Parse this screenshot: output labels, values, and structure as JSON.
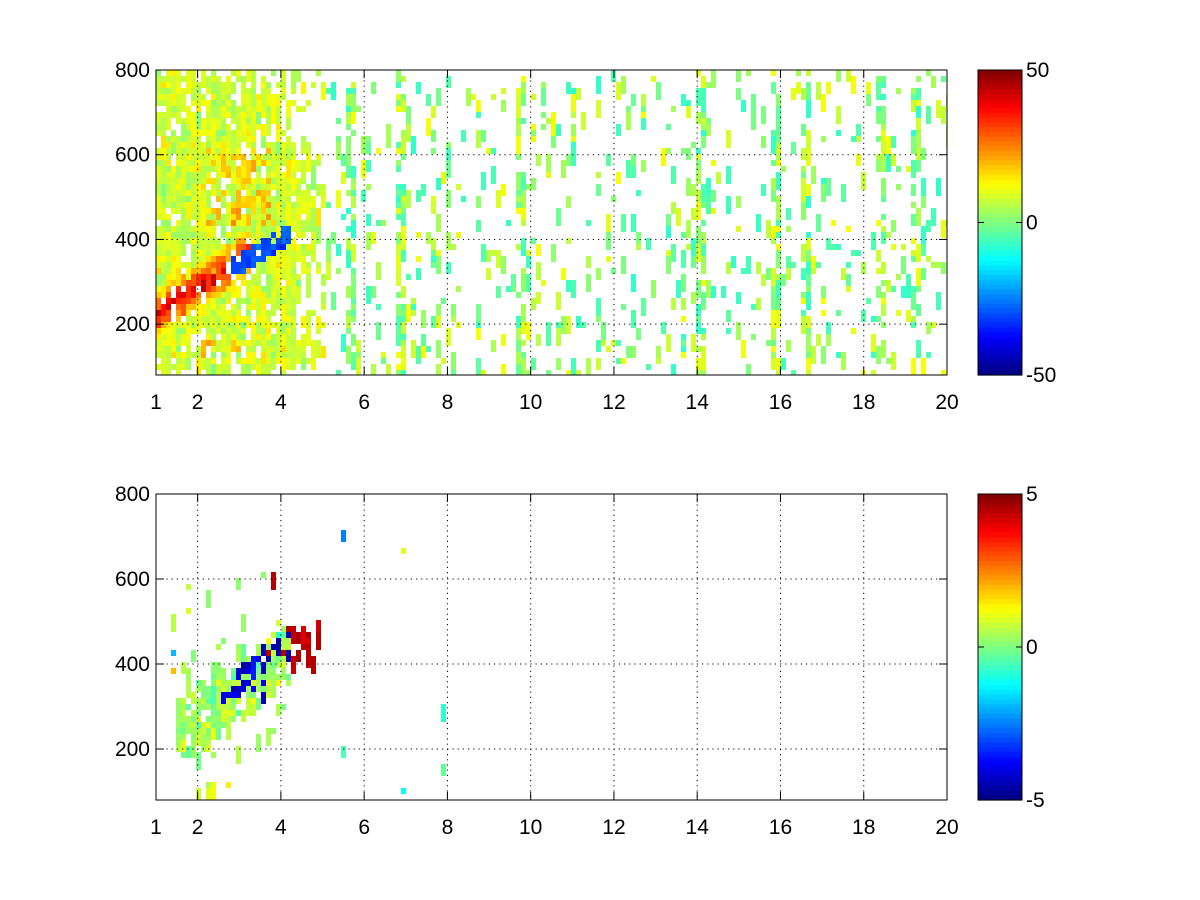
{
  "chart_data": [
    {
      "type": "heatmap",
      "title": "",
      "xlabel": "",
      "ylabel": "",
      "xlim": [
        1,
        20
      ],
      "ylim": [
        80,
        800
      ],
      "xticks": [
        1,
        2,
        4,
        6,
        8,
        10,
        12,
        14,
        16,
        18,
        20
      ],
      "yticks": [
        200,
        400,
        600,
        800
      ],
      "grid": true,
      "colormap": "jet",
      "colorbar": {
        "range": [
          -50,
          50
        ],
        "ticks": [
          50,
          0,
          -50
        ],
        "placement": "right"
      },
      "features": {
        "dense_region": {
          "x_range": [
            1,
            5
          ],
          "y_range": [
            100,
            800
          ]
        },
        "positive_band": {
          "x_range": [
            1.4,
            3.3
          ],
          "y_range": [
            220,
            430
          ],
          "value": 40
        },
        "negative_band": {
          "x_range": [
            2.7,
            4.1
          ],
          "y_range": [
            260,
            420
          ],
          "value": -30
        },
        "sparse_value_range": [
          -8,
          12
        ],
        "column_stripes_x": [
          5.7,
          6.9,
          9.8,
          14.1,
          15.9,
          16.6,
          18.4,
          19.3
        ]
      }
    },
    {
      "type": "heatmap",
      "title": "",
      "xlabel": "",
      "ylabel": "",
      "xlim": [
        1,
        20
      ],
      "ylim": [
        80,
        800
      ],
      "xticks": [
        1,
        2,
        4,
        6,
        8,
        10,
        12,
        14,
        16,
        18,
        20
      ],
      "yticks": [
        200,
        400,
        600,
        800
      ],
      "grid": true,
      "colormap": "jet",
      "colorbar": {
        "range": [
          -5,
          5
        ],
        "ticks": [
          5,
          0,
          -5
        ],
        "placement": "right"
      },
      "features": {
        "dense_region": {
          "x_range": [
            1.5,
            4.2
          ],
          "y_range": [
            200,
            600
          ]
        },
        "negative_band": {
          "x_range": [
            2.5,
            3.6
          ],
          "y_range": [
            320,
            420
          ],
          "value": -4
        },
        "positive_spots": {
          "x_range": [
            3.5,
            4.9
          ],
          "y_range": [
            400,
            500
          ],
          "value": 4.5
        },
        "isolated_marks_x": [
          1.4,
          1.8,
          5.5,
          6.9,
          7.9
        ]
      }
    }
  ]
}
